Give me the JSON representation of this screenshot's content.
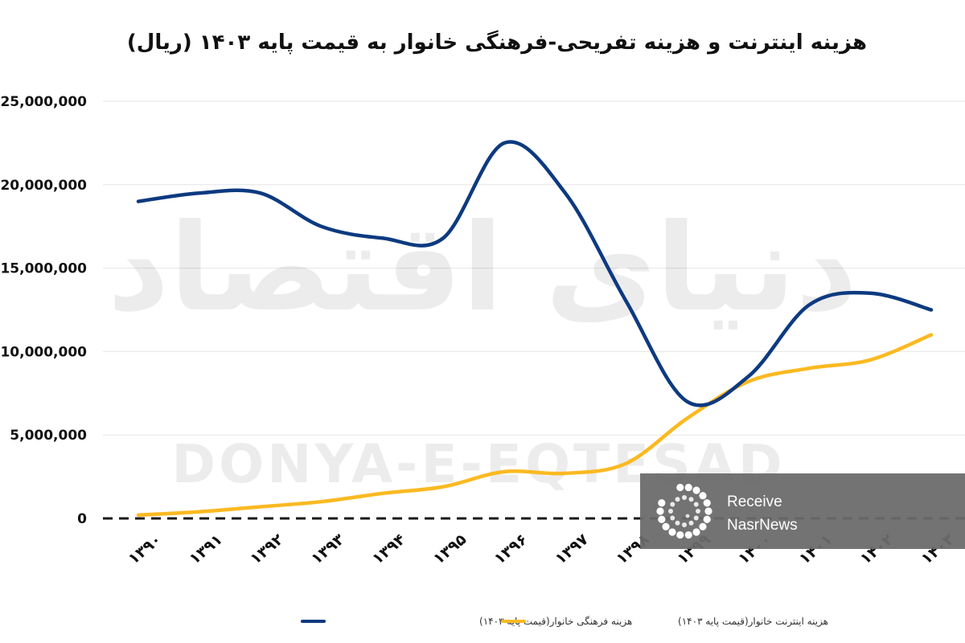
{
  "chart_data": {
    "type": "line",
    "title": "هزینه اینترنت و هزینه تفریحی-فرهنگی خانوار به قیمت پایه ۱۴۰۳ (ریال)",
    "categories": [
      "۱۳۹۰",
      "۱۳۹۱",
      "۱۳۹۲",
      "۱۳۹۳",
      "۱۳۹۴",
      "۱۳۹۵",
      "۱۳۹۶",
      "۱۳۹۷",
      "۱۳۹۸",
      "۱۳۹۹",
      "۱۴۰۰",
      "۱۴۰۱",
      "۱۴۰۲",
      "۱۴۰۳"
    ],
    "series": [
      {
        "name": "هزینه فرهنگی خانوار(قیمت پایه ۱۴۰۳)",
        "color": "#0D3A80",
        "values": [
          19000000,
          19500000,
          19500000,
          17500000,
          16800000,
          16800000,
          22500000,
          19500000,
          13000000,
          7000000,
          8500000,
          12800000,
          13500000,
          12500000
        ]
      },
      {
        "name": "هزینه اینترنت خانوار(قیمت پایه ۱۴۰۳)",
        "color": "#FBB921",
        "values": [
          200000,
          400000,
          700000,
          1000000,
          1500000,
          1900000,
          2800000,
          2700000,
          3300000,
          6000000,
          8200000,
          9000000,
          9500000,
          11000000
        ]
      }
    ],
    "yticks": [
      0,
      5000000,
      10000000,
      15000000,
      20000000,
      25000000
    ],
    "ytick_labels": [
      "0",
      "5,000,000",
      "10,000,000",
      "15,000,000",
      "20,000,000",
      "25,000,000"
    ],
    "ylim": [
      0,
      25000000
    ],
    "grid": true,
    "legend": "bottom"
  },
  "watermark": {
    "persian": "دنیای اقتصاد",
    "latin": "DONYA-E-EQTESAD"
  },
  "badge": {
    "line1": "Receive",
    "line2": "NasrNews"
  }
}
